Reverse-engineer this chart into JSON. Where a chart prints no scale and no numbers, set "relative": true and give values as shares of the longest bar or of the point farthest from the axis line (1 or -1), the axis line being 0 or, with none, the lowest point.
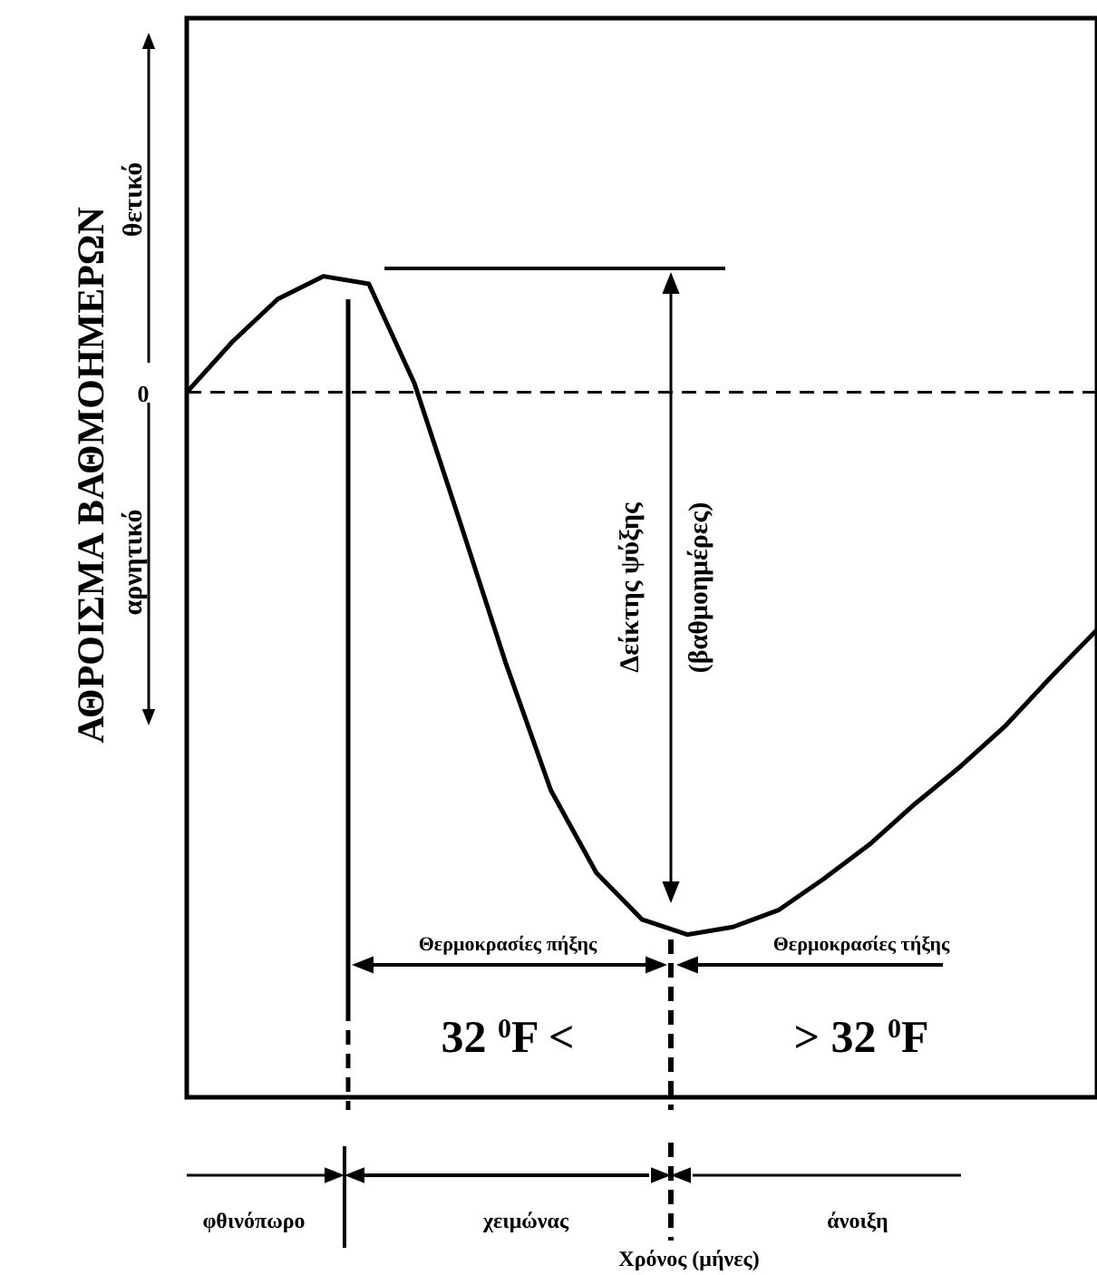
{
  "chart_data": {
    "type": "line",
    "relative": true,
    "ylabel": "ΑΘΡΟΙΣΜΑ ΒΑΘΜΟΗΜΕΡΩΝ",
    "categories": [
      null,
      null,
      null,
      null,
      null,
      null,
      null,
      null,
      null,
      null,
      null,
      null,
      null,
      null,
      null,
      null,
      null,
      null,
      null,
      null,
      null
    ],
    "series": [
      {
        "color": "#000000",
        "values": [
          0,
          0.093,
          0.172,
          0.214,
          0.2,
          0.017,
          -0.238,
          -0.497,
          -0.734,
          -0.886,
          -0.972,
          -1,
          -0.986,
          -0.955,
          -0.897,
          -0.834,
          -0.759,
          -0.69,
          -0.614,
          -0.524,
          -0.438
        ]
      }
    ],
    "marker": "none",
    "line_style": "solid",
    "grid": false,
    "ref_lines": [
      {
        "axis": "y",
        "value": 0,
        "label": "0",
        "line_style": "dashed",
        "color": "#000000"
      }
    ],
    "annotations": [
      "θετικό",
      "αρνητικό",
      "Δείκτης ψύξης",
      "(βαθμοημέρες)",
      "Θερμοκρασίες πήξης",
      "32 $^{0}$F <",
      "Θερμοκρασίες τήξης",
      "> 32 $^{0}$F",
      "φθινόπωρο",
      "χειμώνας",
      "άνοιξη",
      "Χρόνος (μήνες)"
    ]
  }
}
